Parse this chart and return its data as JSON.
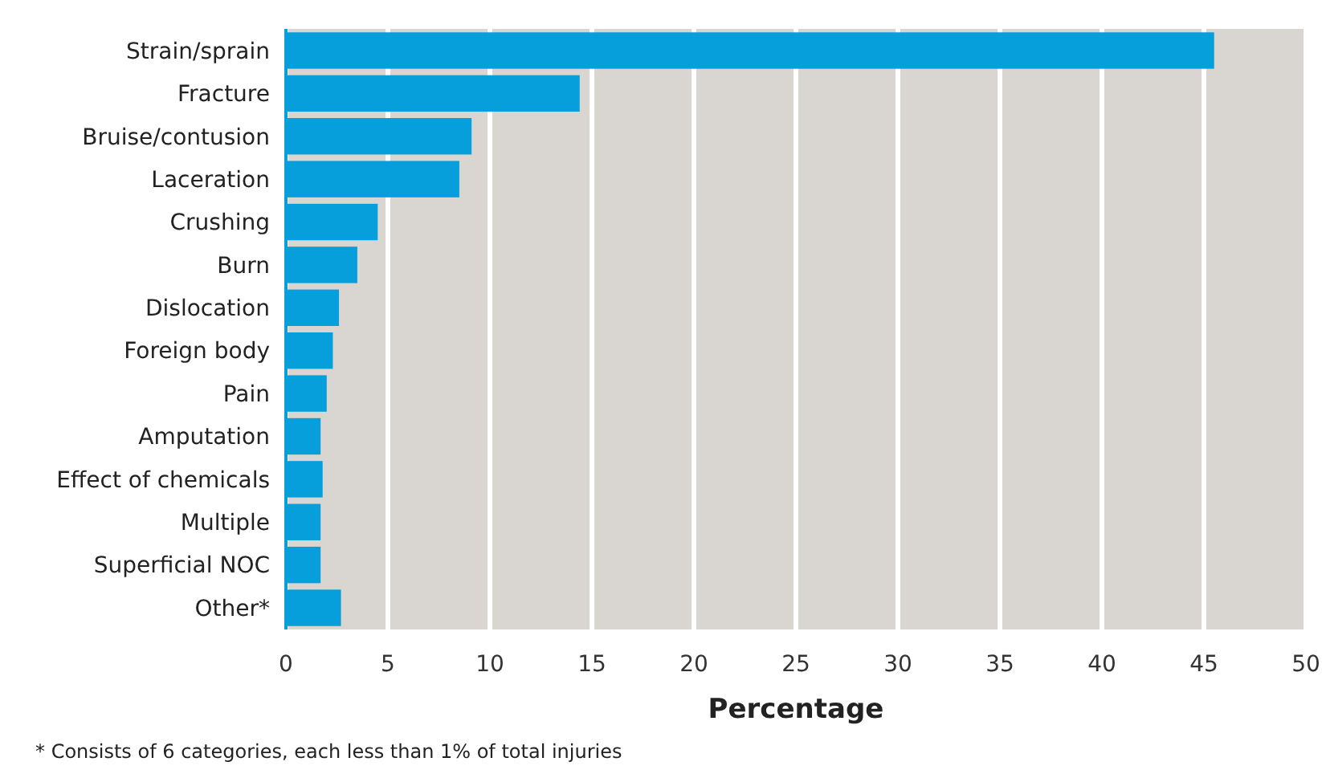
{
  "chart_data": {
    "type": "bar",
    "orientation": "horizontal",
    "xlabel": "Percentage",
    "categories": [
      "Strain/sprain",
      "Fracture",
      "Bruise/contusion",
      "Laceration",
      "Crushing",
      "Burn",
      "Dislocation",
      "Foreign body",
      "Pain",
      "Amputation",
      "Effect of chemicals",
      "Multiple",
      "Superficial NOC",
      "Other*"
    ],
    "values": [
      45.5,
      14.4,
      9.1,
      8.5,
      4.5,
      3.5,
      2.6,
      2.3,
      2.0,
      1.7,
      1.8,
      1.7,
      1.7,
      2.7
    ],
    "color": "#069fdc",
    "xlim": [
      0,
      50
    ],
    "xticks": [
      0,
      5,
      10,
      15,
      20,
      25,
      30,
      35,
      40,
      45,
      50
    ],
    "grid": "x",
    "annotations": [
      "* Consists of 6 categories, each less than 1% of total injuries"
    ]
  }
}
